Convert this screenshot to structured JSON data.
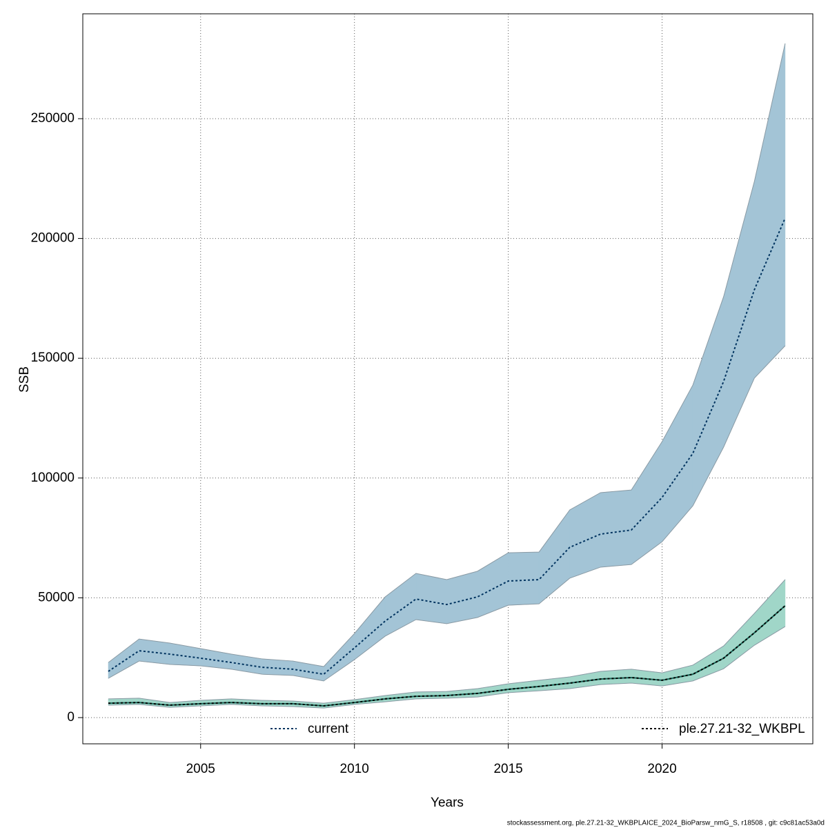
{
  "chart_data": {
    "type": "line",
    "x_label": "Years",
    "y_label": "SSB",
    "footer": "stockassessment.org, ple.27.21-32_WKBPLAICE_2024_BioParsw_nmG_S, r18508 , git: c9c81ac53a0d",
    "x": [
      2002,
      2003,
      2004,
      2005,
      2006,
      2007,
      2008,
      2009,
      2010,
      2011,
      2012,
      2013,
      2014,
      2015,
      2016,
      2017,
      2018,
      2019,
      2020,
      2021,
      2022,
      2023,
      2024
    ],
    "series": [
      {
        "name": "current",
        "color": "#00335f",
        "band_color": "#a3c4d6",
        "values": [
          19300,
          27900,
          26500,
          24800,
          23000,
          21000,
          20200,
          18100,
          29100,
          40300,
          49500,
          47200,
          50400,
          57000,
          57600,
          71100,
          76600,
          78300,
          91900,
          110300,
          140300,
          178600,
          208500
        ],
        "upper": [
          23000,
          32800,
          31100,
          28800,
          26500,
          24500,
          23600,
          21300,
          35100,
          50400,
          60200,
          57600,
          61100,
          68800,
          69100,
          86700,
          93900,
          95000,
          115200,
          138800,
          175700,
          223800,
          281400
        ],
        "lower": [
          16400,
          23600,
          22200,
          21600,
          20200,
          18100,
          17600,
          15300,
          24200,
          34000,
          40900,
          39200,
          41800,
          46900,
          47500,
          58200,
          62800,
          63900,
          73400,
          88400,
          112900,
          141700,
          155200
        ]
      },
      {
        "name": "ple.27.21-32_WKBPL",
        "color": "#000000",
        "band_color": "#a0d6c8",
        "values": [
          6000,
          6300,
          5200,
          5800,
          6300,
          5800,
          5800,
          4900,
          6300,
          7800,
          8900,
          9200,
          10100,
          11800,
          13000,
          14400,
          16100,
          16700,
          15600,
          18100,
          24800,
          35400,
          46700
        ],
        "upper": [
          7800,
          8100,
          6300,
          7200,
          7800,
          7200,
          6900,
          6000,
          7500,
          9200,
          10700,
          10900,
          12100,
          14100,
          15600,
          17000,
          19300,
          20200,
          18700,
          21900,
          29900,
          43500,
          57600
        ],
        "lower": [
          5200,
          5500,
          4300,
          4900,
          5500,
          4900,
          4600,
          4000,
          5500,
          6600,
          7800,
          8100,
          8600,
          10400,
          11200,
          12100,
          13800,
          14400,
          13200,
          15300,
          20400,
          30200,
          38000
        ]
      }
    ],
    "xlim": [
      2001.17,
      2024.9
    ],
    "ylim": [
      -10945,
      293779
    ],
    "xticks": [
      2005,
      2010,
      2015,
      2020
    ],
    "yticks": [
      0,
      50000,
      100000,
      150000,
      200000,
      250000
    ],
    "grid": true,
    "legend": "bottom"
  }
}
